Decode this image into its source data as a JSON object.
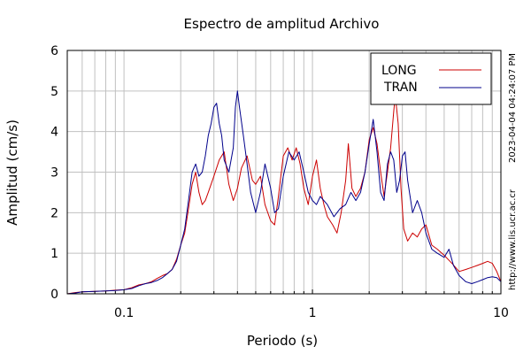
{
  "chart_data": {
    "type": "line",
    "title": "Espectro de amplitud Archivo",
    "xlabel": "Periodo (s)",
    "ylabel": "Amplitud (cm/s)",
    "xscale": "log",
    "xlim": [
      0.05,
      10
    ],
    "ylim": [
      0,
      6
    ],
    "x_ticks": [
      0.1,
      1,
      10
    ],
    "x_tick_labels": [
      "0.1",
      "1",
      "10"
    ],
    "y_ticks": [
      0,
      1,
      2,
      3,
      4,
      5,
      6
    ],
    "y_tick_labels": [
      "0",
      "1",
      "2",
      "3",
      "4",
      "5",
      "6"
    ],
    "grid": true,
    "legend_position": "top-right",
    "series": [
      {
        "name": "LONG",
        "color": "#cc0000",
        "points": [
          [
            0.05,
            0.0
          ],
          [
            0.055,
            0.03
          ],
          [
            0.06,
            0.05
          ],
          [
            0.07,
            0.06
          ],
          [
            0.08,
            0.07
          ],
          [
            0.09,
            0.09
          ],
          [
            0.1,
            0.1
          ],
          [
            0.11,
            0.15
          ],
          [
            0.12,
            0.22
          ],
          [
            0.13,
            0.25
          ],
          [
            0.14,
            0.3
          ],
          [
            0.15,
            0.38
          ],
          [
            0.16,
            0.45
          ],
          [
            0.17,
            0.5
          ],
          [
            0.18,
            0.6
          ],
          [
            0.19,
            0.85
          ],
          [
            0.2,
            1.2
          ],
          [
            0.21,
            1.5
          ],
          [
            0.22,
            2.1
          ],
          [
            0.23,
            2.7
          ],
          [
            0.24,
            3.0
          ],
          [
            0.25,
            2.5
          ],
          [
            0.26,
            2.2
          ],
          [
            0.27,
            2.3
          ],
          [
            0.28,
            2.5
          ],
          [
            0.3,
            2.9
          ],
          [
            0.32,
            3.3
          ],
          [
            0.34,
            3.5
          ],
          [
            0.36,
            2.7
          ],
          [
            0.38,
            2.3
          ],
          [
            0.4,
            2.6
          ],
          [
            0.42,
            3.1
          ],
          [
            0.45,
            3.4
          ],
          [
            0.48,
            2.8
          ],
          [
            0.5,
            2.7
          ],
          [
            0.53,
            2.9
          ],
          [
            0.56,
            2.2
          ],
          [
            0.6,
            1.8
          ],
          [
            0.63,
            1.7
          ],
          [
            0.66,
            2.4
          ],
          [
            0.7,
            3.4
          ],
          [
            0.74,
            3.6
          ],
          [
            0.78,
            3.3
          ],
          [
            0.82,
            3.6
          ],
          [
            0.86,
            3.2
          ],
          [
            0.9,
            2.6
          ],
          [
            0.95,
            2.2
          ],
          [
            1.0,
            2.9
          ],
          [
            1.05,
            3.3
          ],
          [
            1.1,
            2.6
          ],
          [
            1.15,
            2.2
          ],
          [
            1.2,
            1.9
          ],
          [
            1.28,
            1.7
          ],
          [
            1.35,
            1.5
          ],
          [
            1.42,
            2.0
          ],
          [
            1.5,
            2.8
          ],
          [
            1.55,
            3.7
          ],
          [
            1.62,
            2.6
          ],
          [
            1.7,
            2.4
          ],
          [
            1.8,
            2.6
          ],
          [
            1.9,
            3.0
          ],
          [
            2.0,
            3.8
          ],
          [
            2.1,
            4.1
          ],
          [
            2.2,
            3.7
          ],
          [
            2.3,
            3.0
          ],
          [
            2.4,
            2.4
          ],
          [
            2.5,
            3.0
          ],
          [
            2.6,
            3.6
          ],
          [
            2.7,
            4.5
          ],
          [
            2.75,
            4.9
          ],
          [
            2.85,
            4.2
          ],
          [
            2.95,
            2.6
          ],
          [
            3.05,
            1.6
          ],
          [
            3.2,
            1.3
          ],
          [
            3.4,
            1.5
          ],
          [
            3.6,
            1.4
          ],
          [
            3.8,
            1.6
          ],
          [
            4.0,
            1.7
          ],
          [
            4.3,
            1.2
          ],
          [
            4.6,
            1.1
          ],
          [
            5.0,
            0.95
          ],
          [
            5.5,
            0.75
          ],
          [
            6.0,
            0.55
          ],
          [
            6.5,
            0.6
          ],
          [
            7.0,
            0.65
          ],
          [
            7.5,
            0.7
          ],
          [
            8.0,
            0.75
          ],
          [
            8.5,
            0.8
          ],
          [
            9.0,
            0.75
          ],
          [
            9.5,
            0.55
          ],
          [
            10.0,
            0.3
          ]
        ]
      },
      {
        "name": "TRAN",
        "color": "#00008b",
        "points": [
          [
            0.05,
            0.0
          ],
          [
            0.055,
            0.02
          ],
          [
            0.06,
            0.05
          ],
          [
            0.07,
            0.06
          ],
          [
            0.08,
            0.07
          ],
          [
            0.09,
            0.08
          ],
          [
            0.1,
            0.1
          ],
          [
            0.11,
            0.13
          ],
          [
            0.12,
            0.2
          ],
          [
            0.13,
            0.25
          ],
          [
            0.14,
            0.28
          ],
          [
            0.15,
            0.33
          ],
          [
            0.16,
            0.4
          ],
          [
            0.17,
            0.5
          ],
          [
            0.18,
            0.6
          ],
          [
            0.19,
            0.8
          ],
          [
            0.2,
            1.2
          ],
          [
            0.21,
            1.6
          ],
          [
            0.22,
            2.3
          ],
          [
            0.23,
            3.0
          ],
          [
            0.24,
            3.2
          ],
          [
            0.25,
            2.9
          ],
          [
            0.26,
            3.0
          ],
          [
            0.27,
            3.4
          ],
          [
            0.28,
            3.9
          ],
          [
            0.29,
            4.2
          ],
          [
            0.3,
            4.6
          ],
          [
            0.31,
            4.7
          ],
          [
            0.32,
            4.2
          ],
          [
            0.33,
            3.9
          ],
          [
            0.34,
            3.3
          ],
          [
            0.36,
            3.0
          ],
          [
            0.38,
            3.6
          ],
          [
            0.39,
            4.6
          ],
          [
            0.4,
            5.0
          ],
          [
            0.41,
            4.6
          ],
          [
            0.43,
            3.9
          ],
          [
            0.45,
            3.2
          ],
          [
            0.47,
            2.5
          ],
          [
            0.5,
            2.0
          ],
          [
            0.53,
            2.5
          ],
          [
            0.56,
            3.2
          ],
          [
            0.6,
            2.6
          ],
          [
            0.63,
            2.0
          ],
          [
            0.66,
            2.1
          ],
          [
            0.7,
            2.9
          ],
          [
            0.75,
            3.5
          ],
          [
            0.8,
            3.3
          ],
          [
            0.85,
            3.5
          ],
          [
            0.9,
            3.0
          ],
          [
            0.95,
            2.5
          ],
          [
            1.0,
            2.3
          ],
          [
            1.05,
            2.2
          ],
          [
            1.1,
            2.4
          ],
          [
            1.2,
            2.2
          ],
          [
            1.3,
            1.9
          ],
          [
            1.4,
            2.1
          ],
          [
            1.5,
            2.2
          ],
          [
            1.6,
            2.5
          ],
          [
            1.7,
            2.3
          ],
          [
            1.8,
            2.5
          ],
          [
            1.9,
            3.0
          ],
          [
            2.0,
            3.7
          ],
          [
            2.1,
            4.3
          ],
          [
            2.2,
            3.5
          ],
          [
            2.3,
            2.5
          ],
          [
            2.4,
            2.3
          ],
          [
            2.5,
            3.2
          ],
          [
            2.6,
            3.5
          ],
          [
            2.7,
            3.3
          ],
          [
            2.8,
            2.5
          ],
          [
            2.9,
            2.8
          ],
          [
            3.0,
            3.4
          ],
          [
            3.1,
            3.5
          ],
          [
            3.2,
            2.8
          ],
          [
            3.4,
            2.0
          ],
          [
            3.6,
            2.3
          ],
          [
            3.8,
            2.0
          ],
          [
            4.0,
            1.5
          ],
          [
            4.3,
            1.1
          ],
          [
            4.6,
            1.0
          ],
          [
            5.0,
            0.9
          ],
          [
            5.3,
            1.1
          ],
          [
            5.6,
            0.7
          ],
          [
            6.0,
            0.45
          ],
          [
            6.5,
            0.3
          ],
          [
            7.0,
            0.25
          ],
          [
            7.5,
            0.3
          ],
          [
            8.0,
            0.35
          ],
          [
            8.5,
            0.4
          ],
          [
            9.0,
            0.42
          ],
          [
            9.5,
            0.4
          ],
          [
            10.0,
            0.3
          ]
        ]
      }
    ]
  },
  "watermark": {
    "url": "http://www.lis.ucr.ac.cr",
    "timestamp": "2023-04-04 04:24:07 PM"
  }
}
